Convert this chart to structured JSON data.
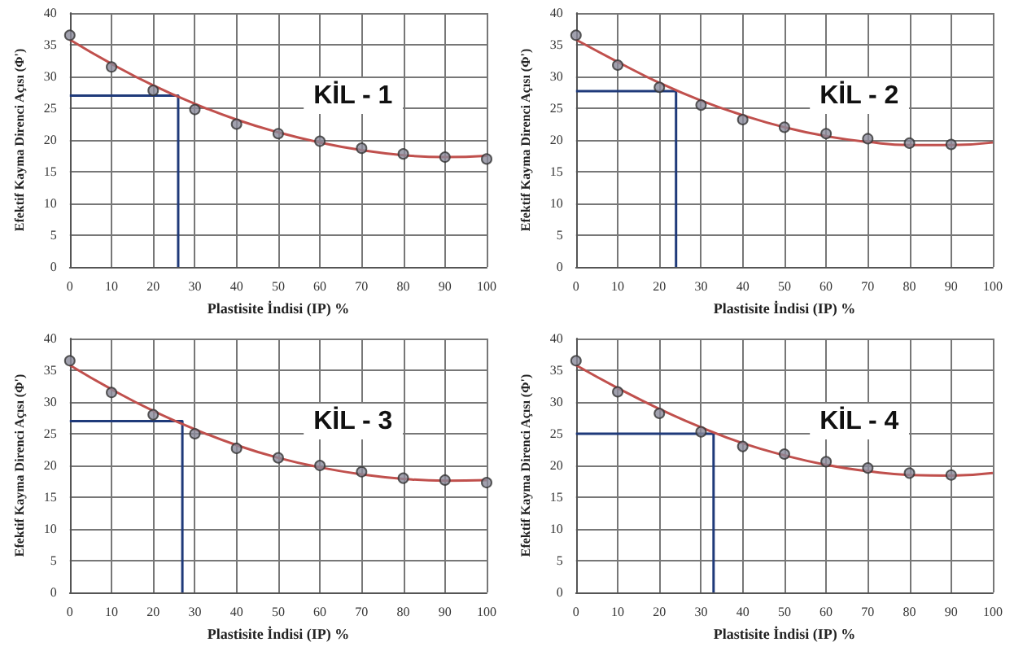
{
  "chart_data": [
    {
      "type": "scatter",
      "title": "KİL - 1",
      "xlabel": "Plastisite İndisi (IP) %",
      "ylabel": "Efektif Kayma Direnci Açısı (Φ')",
      "xlim": [
        0,
        100
      ],
      "ylim": [
        0,
        40
      ],
      "xticks": [
        0,
        10,
        20,
        30,
        40,
        50,
        60,
        70,
        80,
        90,
        100
      ],
      "yticks": [
        0,
        5,
        10,
        15,
        20,
        25,
        30,
        35,
        40
      ],
      "grid": true,
      "marker": "circle",
      "series": [
        {
          "type": "line",
          "color": "#1f3a7a",
          "x": [
            0,
            26,
            26
          ],
          "values": [
            27,
            27,
            0
          ],
          "marker": "none"
        },
        {
          "type": "line",
          "color": "#c0504d",
          "x": [
            0,
            10,
            20,
            30,
            40,
            50,
            60,
            70,
            80,
            90,
            100
          ],
          "values": [
            35.8,
            32,
            28.6,
            25.7,
            23.2,
            21.2,
            19.6,
            18.4,
            17.6,
            17.3,
            17.5
          ],
          "marker": "none"
        },
        {
          "color": "#8a8a9a",
          "x": [
            0,
            10,
            20,
            30,
            40,
            50,
            60,
            70,
            80,
            90,
            100
          ],
          "values": [
            36.5,
            31.5,
            27.8,
            24.8,
            22.5,
            21,
            19.8,
            18.7,
            17.8,
            17.3,
            17
          ]
        }
      ]
    },
    {
      "type": "scatter",
      "title": "KİL - 2",
      "xlabel": "Plastisite İndisi (IP) %",
      "ylabel": "Efektif Kayma Direnci Açısı (Φ')",
      "xlim": [
        0,
        100
      ],
      "ylim": [
        0,
        40
      ],
      "xticks": [
        0,
        10,
        20,
        30,
        40,
        50,
        60,
        70,
        80,
        90,
        100
      ],
      "yticks": [
        0,
        5,
        10,
        15,
        20,
        25,
        30,
        35,
        40
      ],
      "grid": true,
      "marker": "circle",
      "series": [
        {
          "type": "line",
          "color": "#1f3a7a",
          "x": [
            0,
            24,
            24
          ],
          "values": [
            27.7,
            27.7,
            0
          ],
          "marker": "none"
        },
        {
          "type": "line",
          "color": "#c0504d",
          "x": [
            0,
            10,
            20,
            30,
            40,
            50,
            60,
            70,
            80,
            90,
            100
          ],
          "values": [
            35.8,
            32.3,
            29,
            26.2,
            23.9,
            22,
            20.6,
            19.7,
            19.2,
            19.2,
            19.6
          ],
          "marker": "none"
        },
        {
          "color": "#8a8a9a",
          "x": [
            0,
            10,
            20,
            30,
            40,
            50,
            60,
            70,
            80,
            90
          ],
          "values": [
            36.5,
            31.8,
            28.3,
            25.5,
            23.2,
            22,
            21,
            20.2,
            19.5,
            19.3
          ]
        }
      ]
    },
    {
      "type": "scatter",
      "title": "KİL - 3",
      "xlabel": "Plastisite İndisi (IP) %",
      "ylabel": "Efektif Kayma Direnci Açısı (Φ')",
      "xlim": [
        0,
        100
      ],
      "ylim": [
        0,
        40
      ],
      "xticks": [
        0,
        10,
        20,
        30,
        40,
        50,
        60,
        70,
        80,
        90,
        100
      ],
      "yticks": [
        0,
        5,
        10,
        15,
        20,
        25,
        30,
        35,
        40
      ],
      "grid": true,
      "marker": "circle",
      "series": [
        {
          "type": "line",
          "color": "#1f3a7a",
          "x": [
            0,
            27,
            27
          ],
          "values": [
            27,
            27,
            0
          ],
          "marker": "none"
        },
        {
          "type": "line",
          "color": "#c0504d",
          "x": [
            0,
            10,
            20,
            30,
            40,
            50,
            60,
            70,
            80,
            90,
            100
          ],
          "values": [
            35.8,
            32,
            28.6,
            25.7,
            23.2,
            21.2,
            19.7,
            18.6,
            17.9,
            17.6,
            17.7
          ],
          "marker": "none"
        },
        {
          "color": "#8a8a9a",
          "x": [
            0,
            10,
            20,
            30,
            40,
            50,
            60,
            70,
            80,
            90,
            100
          ],
          "values": [
            36.5,
            31.5,
            28,
            25,
            22.7,
            21.2,
            20,
            19,
            18,
            17.7,
            17.3
          ]
        }
      ]
    },
    {
      "type": "scatter",
      "title": "KİL - 4",
      "xlabel": "Plastisite İndisi (IP) %",
      "ylabel": "Efektif Kayma Direnci Açısı (Φ')",
      "xlim": [
        0,
        100
      ],
      "ylim": [
        0,
        40
      ],
      "xticks": [
        0,
        10,
        20,
        30,
        40,
        50,
        60,
        70,
        80,
        90,
        100
      ],
      "yticks": [
        0,
        5,
        10,
        15,
        20,
        25,
        30,
        35,
        40
      ],
      "grid": true,
      "marker": "circle",
      "series": [
        {
          "type": "line",
          "color": "#1f3a7a",
          "x": [
            0,
            33,
            33
          ],
          "values": [
            25,
            25,
            0
          ],
          "marker": "none"
        },
        {
          "type": "line",
          "color": "#c0504d",
          "x": [
            0,
            10,
            20,
            30,
            40,
            50,
            60,
            70,
            80,
            90,
            100
          ],
          "values": [
            35.8,
            32.2,
            28.9,
            26,
            23.5,
            21.6,
            20.1,
            19.1,
            18.5,
            18.4,
            18.8
          ],
          "marker": "none"
        },
        {
          "color": "#8a8a9a",
          "x": [
            0,
            10,
            20,
            30,
            40,
            50,
            60,
            70,
            80,
            90
          ],
          "values": [
            36.5,
            31.6,
            28.2,
            25.3,
            23,
            21.8,
            20.6,
            19.6,
            18.8,
            18.5
          ]
        }
      ]
    }
  ]
}
